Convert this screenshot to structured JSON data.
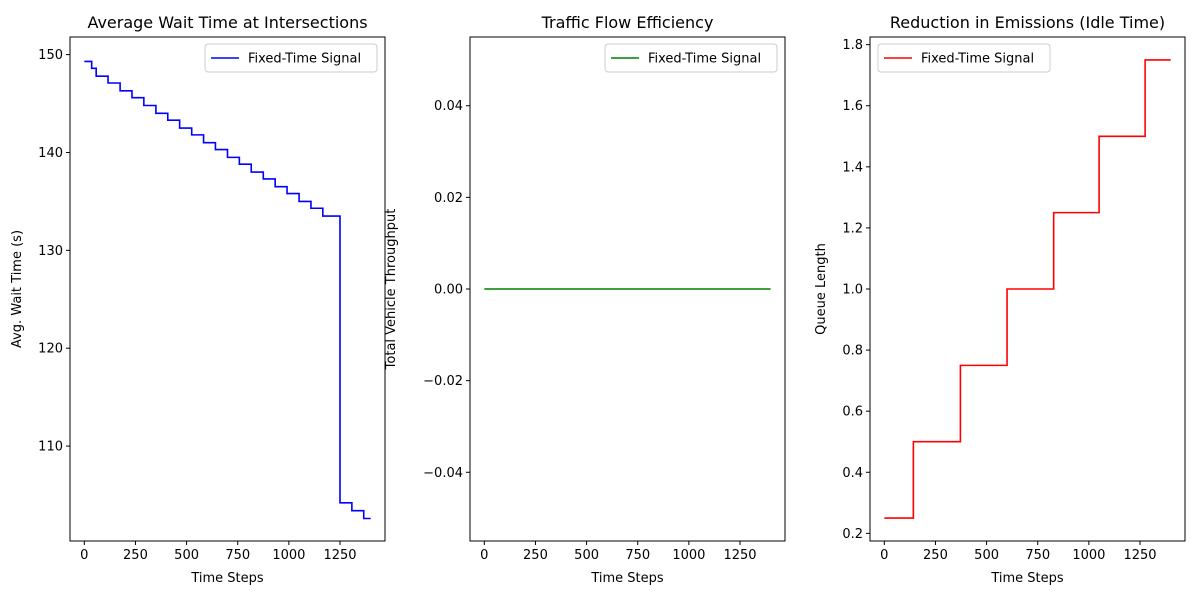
{
  "chart_data": [
    {
      "type": "line",
      "title": "Average Wait Time at Intersections",
      "xlabel": "Time Steps",
      "ylabel": "Avg. Wait Time (s)",
      "xlim": [
        -70,
        1470
      ],
      "ylim": [
        100.3,
        151.8
      ],
      "xticks": [
        0,
        250,
        500,
        750,
        1000,
        1250
      ],
      "yticks": [
        110,
        120,
        130,
        140,
        150
      ],
      "ytick_decimals": 0,
      "grid": false,
      "legend_position": "upper right",
      "series": [
        {
          "name": "Fixed-Time Signal",
          "color": "#0000ff",
          "step": true,
          "x": [
            0,
            36,
            58,
            116,
            175,
            233,
            291,
            350,
            408,
            466,
            525,
            583,
            641,
            700,
            758,
            816,
            875,
            933,
            991,
            1050,
            1108,
            1166,
            1250,
            1308,
            1366,
            1400
          ],
          "y": [
            149.3,
            148.6,
            147.8,
            147.1,
            146.3,
            145.6,
            144.8,
            144.0,
            143.3,
            142.5,
            141.8,
            141.0,
            140.3,
            139.5,
            138.8,
            138.0,
            137.3,
            136.5,
            135.8,
            135.0,
            134.3,
            133.5,
            104.2,
            103.4,
            102.6,
            102.6
          ]
        }
      ]
    },
    {
      "type": "line",
      "title": "Traffic Flow Efficiency",
      "xlabel": "Time Steps",
      "ylabel": "Total Vehicle Throughput",
      "xlim": [
        -70,
        1470
      ],
      "ylim": [
        -0.055,
        0.055
      ],
      "xticks": [
        0,
        250,
        500,
        750,
        1000,
        1250
      ],
      "yticks": [
        -0.04,
        -0.02,
        0.0,
        0.02,
        0.04
      ],
      "ytick_decimals": 2,
      "grid": false,
      "legend_position": "upper right",
      "series": [
        {
          "name": "Fixed-Time Signal",
          "color": "#008000",
          "step": false,
          "x": [
            0,
            1400
          ],
          "y": [
            0,
            0
          ]
        }
      ]
    },
    {
      "type": "line",
      "title": "Reduction in Emissions (Idle Time)",
      "xlabel": "Time Steps",
      "ylabel": "Queue Length",
      "xlim": [
        -70,
        1470
      ],
      "ylim": [
        0.175,
        1.825
      ],
      "xticks": [
        0,
        250,
        500,
        750,
        1000,
        1250
      ],
      "yticks": [
        0.2,
        0.4,
        0.6,
        0.8,
        1.0,
        1.2,
        1.4,
        1.6,
        1.8
      ],
      "ytick_decimals": 1,
      "grid": false,
      "legend_position": "upper left",
      "series": [
        {
          "name": "Fixed-Time Signal",
          "color": "#ff0000",
          "step": true,
          "x": [
            0,
            142,
            372,
            600,
            828,
            1050,
            1275,
            1400
          ],
          "y": [
            0.25,
            0.5,
            0.75,
            1.0,
            1.25,
            1.5,
            1.75,
            1.75
          ]
        }
      ]
    }
  ]
}
